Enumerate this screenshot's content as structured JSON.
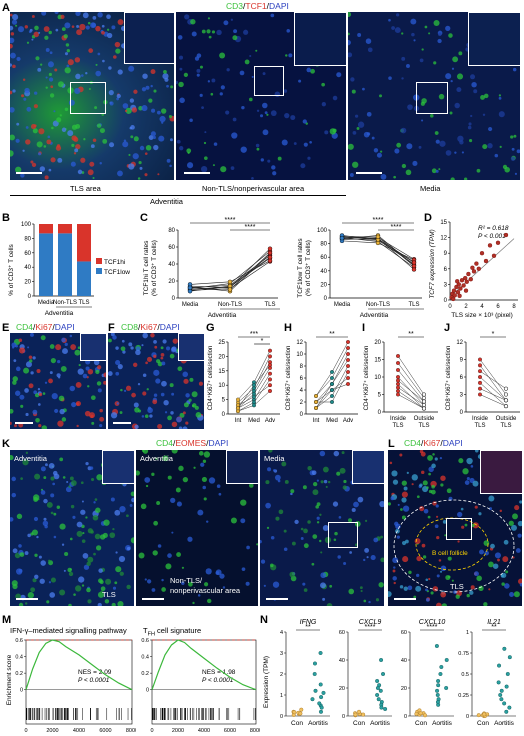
{
  "panels": {
    "A": {
      "letter": "A",
      "stain": {
        "p1": "CD3",
        "sep1": "/",
        "p2": "TCF1",
        "sep2": "/",
        "p3": "DAPI"
      },
      "labels": {
        "tls": "TLS area",
        "nontls": "Non-TLS/nonperivascular area",
        "media": "Media",
        "adventitia": "Adventitia"
      }
    },
    "B": {
      "letter": "B",
      "ylabel": "% of CD₃⁺ T cells",
      "ylabel_text": "% of CD3⁺ T cells",
      "xgroup": "Adventitia",
      "legend": {
        "hi": "TCF1hi",
        "low": "TCF1low"
      },
      "colors": {
        "hi": "#d9342b",
        "low": "#2f7bc4"
      }
    },
    "C": {
      "letter": "C",
      "left_ylabel_l1": "TCF1hi T cell rates",
      "left_ylabel_l2": "(% of CD3⁺ T cells)",
      "right_ylabel_l1": "TCF1low T cell rates",
      "right_ylabel_l2": "(% of CD3⁺ T cells)",
      "xgroup": "Adventitia",
      "sig": "****"
    },
    "D": {
      "letter": "D",
      "ylabel": "TCF7 expression (TPM)",
      "xlabel": "TLS size × 10³ (pixel)",
      "r2": "R² = 0.618",
      "p": "P < 0.001"
    },
    "E": {
      "letter": "E",
      "stain": {
        "p1": "CD4",
        "sep1": "/",
        "p2": "Ki67",
        "sep2": "/",
        "p3": "DAPI"
      }
    },
    "F": {
      "letter": "F",
      "stain": {
        "p1": "CD8",
        "sep1": "/",
        "p2": "Ki67",
        "sep2": "/",
        "p3": "DAPI"
      }
    },
    "G": {
      "letter": "G",
      "ylabel": "CD4⁺Ki67⁺ cells/section",
      "sig1": "***",
      "sig2": "*"
    },
    "H": {
      "letter": "H",
      "ylabel": "CD8⁺Ki67⁺ cells/section",
      "sig1": "**"
    },
    "I": {
      "letter": "I",
      "ylabel": "CD4⁺Ki67⁺ cells/section",
      "sig1": "**",
      "x1": "Inside",
      "x1b": "TLS",
      "x2": "Outside",
      "x2b": "TLS"
    },
    "J": {
      "letter": "J",
      "ylabel": "CD8⁺Ki67⁺ cells/section",
      "sig1": "*",
      "x1": "Inside",
      "x1b": "TLS",
      "x2": "Outside",
      "x2b": "TLS"
    },
    "K": {
      "letter": "K",
      "stain": {
        "p1": "CD4",
        "sep1": "/",
        "p2": "EOMES",
        "sep2": "/",
        "p3": "DAPI"
      },
      "labels": {
        "adv1": "Adventitia",
        "adv2": "Adventitia",
        "media": "Media",
        "tls": "TLS",
        "nontls1": "Non-TLS/",
        "nontls2": "nonperivascular area"
      }
    },
    "L": {
      "letter": "L",
      "stain": {
        "p1": "CD4",
        "sep1": "/",
        "p2": "Ki67",
        "sep2": "/",
        "p3": "DAPI"
      },
      "labels": {
        "follicle": "B cell follicle",
        "tls": "TLS"
      }
    },
    "M": {
      "letter": "M",
      "ylabel": "Enrichment score",
      "left": {
        "title": "IFN-γ–mediated signalling pathway",
        "nes": "NES = 2.09",
        "p": "P < 0.0001"
      },
      "right": {
        "title_pre": "T",
        "title_sub": "FH",
        "title_post": " cell signature",
        "nes": "NES = 1.98",
        "p": "P < 0.0001"
      }
    },
    "N": {
      "letter": "N",
      "ylabel": "Expression (TPM)",
      "genes": [
        {
          "name": "IFNG",
          "sig": "**"
        },
        {
          "name": "CXCL9",
          "sig": "****"
        },
        {
          "name": "CXCL10",
          "sig": "****"
        },
        {
          "name": "IL21",
          "sig": "**"
        }
      ],
      "con": "Con",
      "aortitis": "Aortitis"
    }
  },
  "chart_data": [
    {
      "panel": "B",
      "type": "bar",
      "categories": [
        "Media",
        "Non-TLS",
        "TLS"
      ],
      "series": [
        {
          "name": "TCF1low",
          "values": [
            87,
            87,
            48
          ]
        },
        {
          "name": "TCF1hi",
          "values": [
            13,
            13,
            52
          ]
        }
      ],
      "ylabel": "% of CD3⁺ T cells",
      "ylim": [
        0,
        100
      ],
      "yticks": [
        0,
        20,
        40,
        60,
        80,
        100
      ],
      "stacked": true,
      "legend": "right"
    },
    {
      "panel": "C-left",
      "type": "line",
      "categories": [
        "Media",
        "Non-TLS",
        "TLS"
      ],
      "series_values": [
        [
          9,
          11,
          43
        ],
        [
          10,
          13,
          47
        ],
        [
          12,
          15,
          50
        ],
        [
          13,
          8,
          52
        ],
        [
          11,
          17,
          55
        ],
        [
          14,
          12,
          58
        ],
        [
          16,
          19,
          44
        ],
        [
          8,
          14,
          48
        ],
        [
          12,
          10,
          53
        ]
      ],
      "ylim": [
        0,
        80
      ],
      "yticks": [
        0,
        20,
        40,
        60,
        80
      ]
    },
    {
      "panel": "C-right",
      "type": "line",
      "categories": [
        "Media",
        "Non-TLS",
        "TLS"
      ],
      "series_values": [
        [
          91,
          89,
          57
        ],
        [
          90,
          87,
          53
        ],
        [
          88,
          85,
          50
        ],
        [
          87,
          92,
          48
        ],
        [
          89,
          83,
          45
        ],
        [
          86,
          88,
          42
        ],
        [
          84,
          81,
          56
        ],
        [
          92,
          86,
          52
        ],
        [
          88,
          90,
          47
        ]
      ],
      "ylim": [
        0,
        100
      ],
      "yticks": [
        0,
        20,
        40,
        60,
        80,
        100
      ]
    },
    {
      "panel": "D",
      "type": "scatter",
      "points": [
        [
          0.2,
          0.5
        ],
        [
          0.3,
          1.2
        ],
        [
          0.5,
          1.8
        ],
        [
          0.6,
          0.9
        ],
        [
          0.8,
          2.5
        ],
        [
          1.0,
          1.5
        ],
        [
          1.1,
          3.0
        ],
        [
          1.3,
          2.2
        ],
        [
          1.5,
          3.8
        ],
        [
          1.7,
          2.8
        ],
        [
          1.9,
          4.2
        ],
        [
          2.1,
          3.5
        ],
        [
          2.3,
          5.0
        ],
        [
          2.6,
          4.0
        ],
        [
          2.8,
          6.2
        ],
        [
          3.0,
          5.5
        ],
        [
          3.3,
          7.0
        ],
        [
          3.6,
          6.0
        ],
        [
          4.0,
          9.0
        ],
        [
          4.5,
          7.5
        ],
        [
          5.0,
          10.5
        ],
        [
          5.5,
          8.5
        ],
        [
          6.0,
          11.0
        ],
        [
          7.0,
          12.5
        ],
        [
          0.4,
          0.2
        ],
        [
          1.2,
          0.8
        ],
        [
          2.0,
          1.8
        ],
        [
          0.9,
          3.6
        ]
      ],
      "fit": [
        [
          0,
          0.6
        ],
        [
          8,
          11.8
        ]
      ],
      "xlim": [
        0,
        8.5
      ],
      "ylim": [
        0,
        15
      ],
      "xticks": [
        0,
        2,
        4,
        6,
        8
      ],
      "yticks": [
        0,
        3,
        6,
        9,
        12,
        15
      ]
    },
    {
      "panel": "G",
      "type": "scatter",
      "categories": [
        "Int",
        "Med",
        "Adv"
      ],
      "series_values": [
        [
          2,
          5,
          14
        ],
        [
          3,
          8,
          18
        ],
        [
          1,
          4,
          12
        ],
        [
          4,
          9,
          20
        ],
        [
          2,
          7,
          16
        ],
        [
          5,
          11,
          22
        ],
        [
          3,
          6,
          10
        ],
        [
          1,
          3,
          8
        ],
        [
          2,
          10,
          17
        ]
      ],
      "ylim": [
        0,
        25
      ],
      "yticks": [
        0,
        5,
        10,
        15,
        20,
        25
      ]
    },
    {
      "panel": "H",
      "type": "scatter",
      "categories": [
        "Int",
        "Med",
        "Adv"
      ],
      "series_values": [
        [
          1,
          3,
          8
        ],
        [
          2,
          5,
          10
        ],
        [
          1,
          4,
          6
        ],
        [
          3,
          6,
          11
        ],
        [
          2,
          2,
          7
        ],
        [
          1,
          5,
          9
        ],
        [
          3,
          7,
          12
        ],
        [
          2,
          4,
          5
        ]
      ],
      "ylim": [
        0,
        12
      ],
      "yticks": [
        0,
        2,
        4,
        6,
        8,
        10,
        12
      ]
    },
    {
      "panel": "I",
      "type": "line",
      "categories": [
        "Inside TLS",
        "Outside TLS"
      ],
      "series_values": [
        [
          16,
          5
        ],
        [
          14,
          4
        ],
        [
          12,
          3
        ],
        [
          10,
          2
        ],
        [
          9,
          3
        ],
        [
          8,
          1
        ],
        [
          7,
          2
        ],
        [
          6,
          1
        ],
        [
          5,
          1
        ]
      ],
      "ylim": [
        0,
        20
      ],
      "yticks": [
        0,
        5,
        10,
        15,
        20
      ]
    },
    {
      "panel": "J",
      "type": "line",
      "categories": [
        "Inside TLS",
        "Outside TLS"
      ],
      "series_values": [
        [
          9,
          3
        ],
        [
          8,
          2
        ],
        [
          7,
          4
        ],
        [
          6,
          2
        ],
        [
          5,
          1
        ],
        [
          4,
          2
        ],
        [
          3,
          1
        ]
      ],
      "ylim": [
        0,
        12
      ],
      "yticks": [
        0,
        3,
        6,
        9,
        12
      ]
    },
    {
      "panel": "M",
      "type": "line",
      "curves": [
        {
          "name": "IFN-γ–mediated signalling pathway",
          "x": [
            0,
            500,
            1000,
            1500,
            2000,
            2500,
            3000,
            4000,
            5000,
            6000,
            7000,
            8000
          ],
          "y": [
            0,
            0.25,
            0.45,
            0.56,
            0.6,
            0.58,
            0.52,
            0.42,
            0.3,
            0.18,
            0.08,
            0
          ]
        },
        {
          "name": "TFH cell signature",
          "x": [
            0,
            500,
            1000,
            1500,
            2000,
            2500,
            3000,
            4000,
            5000,
            6000,
            7000,
            8000
          ],
          "y": [
            0,
            0.22,
            0.42,
            0.54,
            0.6,
            0.57,
            0.5,
            0.38,
            0.26,
            0.15,
            0.06,
            0
          ]
        }
      ],
      "xlim": [
        0,
        8000
      ],
      "ylim": [
        -0.1,
        0.6
      ],
      "xticks": [
        0,
        2000,
        4000,
        6000,
        8000
      ],
      "yticks": [
        0,
        0.2,
        0.4,
        0.6
      ]
    },
    {
      "panel": "N",
      "type": "scatter",
      "groups": [
        {
          "gene": "IFNG",
          "con": [
            0.1,
            0.2,
            0.15,
            0.3,
            0.05,
            0.12,
            0.18
          ],
          "aortitis": [
            0.2,
            0.5,
            0.8,
            1.2,
            1.5,
            0.9,
            2.0,
            2.5,
            0.4,
            1.1,
            3.0,
            0.6
          ],
          "ylim": [
            0,
            4
          ],
          "yticks": [
            0,
            1,
            2,
            3,
            4
          ]
        },
        {
          "gene": "CXCL9",
          "con": [
            1,
            2,
            1.5,
            3,
            0.5,
            2,
            1
          ],
          "aortitis": [
            5,
            10,
            15,
            20,
            8,
            25,
            30,
            12,
            18,
            6,
            22,
            40
          ],
          "ylim": [
            0,
            60
          ],
          "yticks": [
            0,
            20,
            40,
            60
          ]
        },
        {
          "gene": "CXCL10",
          "con": [
            1,
            3,
            2,
            4,
            0.5,
            2,
            1.5
          ],
          "aortitis": [
            8,
            15,
            20,
            30,
            12,
            25,
            40,
            18,
            35,
            10,
            22,
            50
          ],
          "ylim": [
            0,
            60
          ],
          "yticks": [
            0,
            20,
            40,
            60
          ]
        },
        {
          "gene": "IL21",
          "con": [
            0,
            0.02,
            0.01,
            0.03,
            0,
            0.01,
            0.02
          ],
          "aortitis": [
            0.1,
            0.2,
            0.4,
            0.6,
            0.15,
            0.3,
            0.8,
            0.25,
            0.5,
            0.05,
            0.35,
            0.7
          ],
          "ylim": [
            0,
            1
          ],
          "yticks": [
            0,
            0.25,
            0.5,
            0.75,
            1.0
          ]
        }
      ],
      "categories": [
        "Con",
        "Aortitis"
      ]
    }
  ]
}
